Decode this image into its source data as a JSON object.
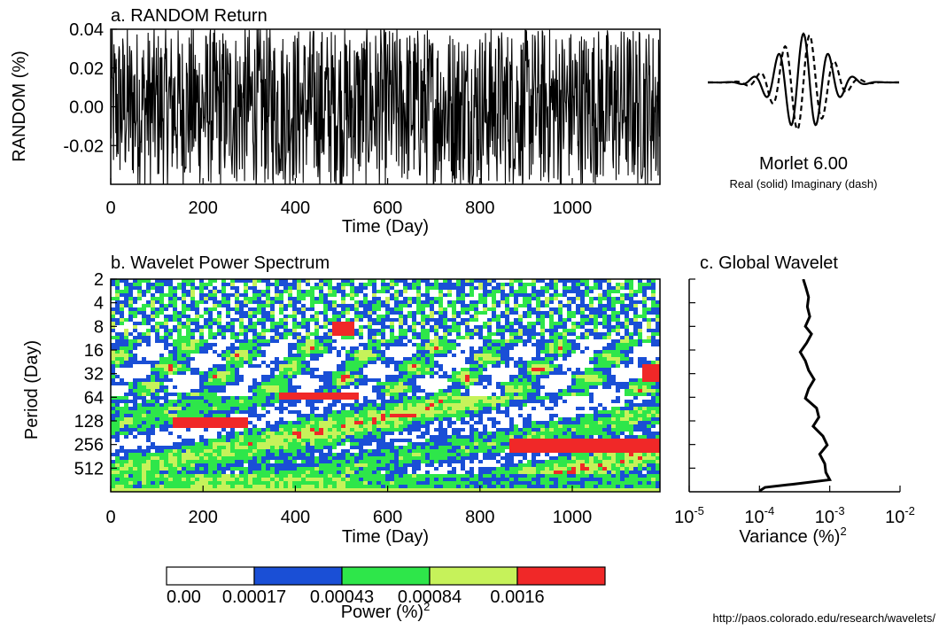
{
  "panel_a": {
    "title": "a. RANDOM Return",
    "xlabel": "Time (Day)",
    "ylabel": "RANDOM (%)"
  },
  "wavelet": {
    "name": "Morlet 6.00",
    "caption": "Real (solid)  Imaginary (dash)"
  },
  "panel_b": {
    "title": "b. Wavelet Power Spectrum",
    "xlabel": "Time (Day)",
    "ylabel": "Period (Day)"
  },
  "panel_c": {
    "title": "c. Global Wavelet",
    "xlabel_main": "Variance (%)",
    "xlabel_sup": "2"
  },
  "colorbar": {
    "label_main": "Power (%)",
    "label_sup": "2",
    "tick_labels": [
      "0.00",
      "0.00017",
      "0.00043",
      "0.00084",
      "0.0016"
    ],
    "colors": [
      "#ffffff",
      "#1a4fd6",
      "#2ee64a",
      "#c6f25a",
      "#f02828"
    ]
  },
  "footer": {
    "url": "http://paos.colorado.edu/research/wavelets/"
  },
  "chart_data": [
    {
      "type": "line",
      "id": "random_return",
      "title": "a. RANDOM Return",
      "xlabel": "Time (Day)",
      "ylabel": "RANDOM (%)",
      "xlim": [
        0,
        1190
      ],
      "ylim": [
        -0.04,
        0.04
      ],
      "xticks": [
        0,
        200,
        400,
        600,
        800,
        1000
      ],
      "yticks": [
        -0.02,
        0.0,
        0.02,
        0.04
      ],
      "ytick_labels": [
        "-0.02",
        "0.00",
        "0.02",
        "0.04"
      ],
      "n_points": 1190,
      "series": [
        {
          "style": "solid black",
          "amplitude_pct": 0.04
        }
      ]
    },
    {
      "type": "heatmap",
      "id": "wavelet_power",
      "title": "b. Wavelet Power Spectrum",
      "xlabel": "Time (Day)",
      "ylabel": "Period (Day)",
      "xlim": [
        0,
        1190
      ],
      "xticks": [
        0,
        200,
        400,
        600,
        800,
        1000
      ],
      "ylim": [
        2,
        1024
      ],
      "yscale": "log2",
      "yticks": [
        2,
        4,
        8,
        16,
        32,
        64,
        128,
        256,
        512
      ],
      "levels": [
        0.0,
        0.00017,
        0.00043,
        0.00084,
        0.0016
      ],
      "colors": [
        "#ffffff",
        "#1a4fd6",
        "#2ee64a",
        "#c6f25a",
        "#f02828"
      ],
      "high_power_regions": [
        {
          "t": [
            130,
            300
          ],
          "period": [
            110,
            160
          ]
        },
        {
          "t": [
            360,
            540
          ],
          "period": [
            55,
            72
          ]
        },
        {
          "t": [
            860,
            1190
          ],
          "period": [
            210,
            320
          ]
        },
        {
          "t": [
            1150,
            1190
          ],
          "period": [
            24,
            40
          ]
        },
        {
          "t": [
            480,
            530
          ],
          "period": [
            7,
            11
          ]
        }
      ]
    },
    {
      "type": "line",
      "id": "global_wavelet",
      "title": "c. Global Wavelet",
      "xlabel": "Variance (%)^2",
      "xscale": "log",
      "xlim": [
        1e-05,
        0.01
      ],
      "xticks": [
        1e-05,
        0.0001,
        0.001,
        0.01
      ],
      "xtick_base": "10",
      "xtick_exponents": [
        "-5",
        "-4",
        "-3",
        "-2"
      ],
      "ylim": [
        2,
        1024
      ],
      "yscale": "log2",
      "x": [
        0.00042,
        0.00046,
        0.0005,
        0.00048,
        0.00052,
        0.00045,
        0.00055,
        0.00047,
        0.00038,
        0.00045,
        0.0005,
        0.0006,
        0.0005,
        0.00045,
        0.00065,
        0.0007,
        0.00058,
        0.0008,
        0.00092,
        0.00072,
        0.00085,
        0.00088,
        0.001,
        0.0003,
        0.00012,
        0.0001
      ],
      "y": [
        2,
        2.6,
        3.4,
        4.5,
        6,
        8,
        10,
        13,
        17,
        22,
        29,
        38,
        50,
        66,
        88,
        115,
        150,
        200,
        260,
        340,
        450,
        580,
        720,
        820,
        900,
        1000
      ]
    }
  ]
}
